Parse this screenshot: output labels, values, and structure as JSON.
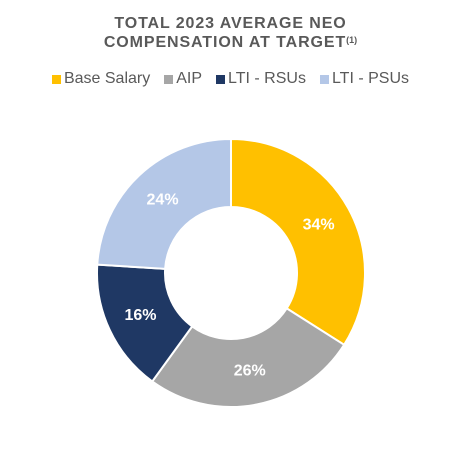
{
  "chart_data": {
    "type": "pie",
    "title_line1": "TOTAL 2023 AVERAGE NEO",
    "title_line2": "COMPENSATION AT TARGET",
    "title_superscript": "(1)",
    "legend_position": "top",
    "categories": [
      "Base Salary",
      "AIP",
      "LTI - RSUs",
      "LTI - PSUs"
    ],
    "values": [
      34,
      26,
      16,
      24
    ],
    "data_labels": [
      "34%",
      "26%",
      "16%",
      "24%"
    ],
    "colors": [
      "#FFC000",
      "#A6A6A6",
      "#1F3864",
      "#B4C7E7"
    ],
    "donut": true
  }
}
